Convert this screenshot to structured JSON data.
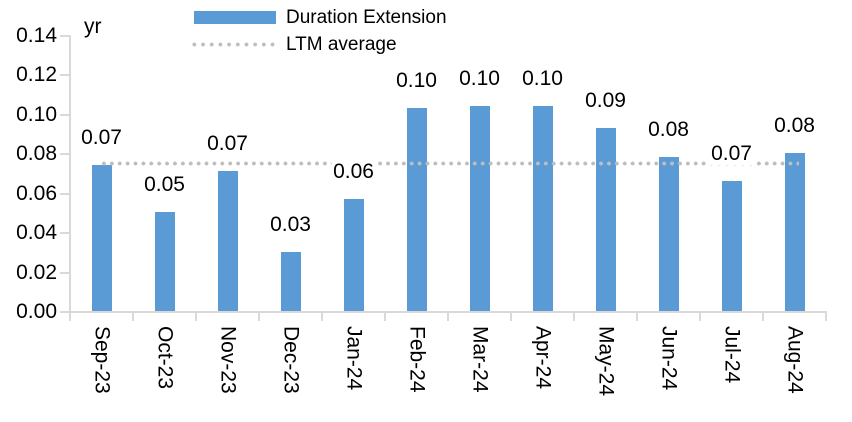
{
  "chart_data": {
    "type": "bar",
    "title": "",
    "unit_label": "yr",
    "categories": [
      "Sep-23",
      "Oct-23",
      "Nov-23",
      "Dec-23",
      "Jan-24",
      "Feb-24",
      "Mar-24",
      "Apr-24",
      "May-24",
      "Jun-24",
      "Jul-24",
      "Aug-24"
    ],
    "series": [
      {
        "name": "Duration Extension",
        "type": "bar",
        "color": "#5B9BD5",
        "values": [
          0.074,
          0.05,
          0.071,
          0.03,
          0.057,
          0.103,
          0.104,
          0.104,
          0.093,
          0.078,
          0.066,
          0.08
        ],
        "data_labels": [
          "0.07",
          "0.05",
          "0.07",
          "0.03",
          "0.06",
          "0.10",
          "0.10",
          "0.10",
          "0.09",
          "0.08",
          "0.07",
          "0.08"
        ]
      },
      {
        "name": "LTM average",
        "type": "line",
        "line_style": "dotted",
        "color": "#BEBEBE",
        "value": 0.075
      }
    ],
    "ylim": [
      0,
      0.14
    ],
    "yticks": [
      "0.00",
      "0.02",
      "0.04",
      "0.06",
      "0.08",
      "0.10",
      "0.12",
      "0.14"
    ],
    "grid": false,
    "legend_position": "top",
    "axis_color": "#D9D9D9",
    "background_color": "#FFFFFF",
    "text_color": "#000000"
  }
}
